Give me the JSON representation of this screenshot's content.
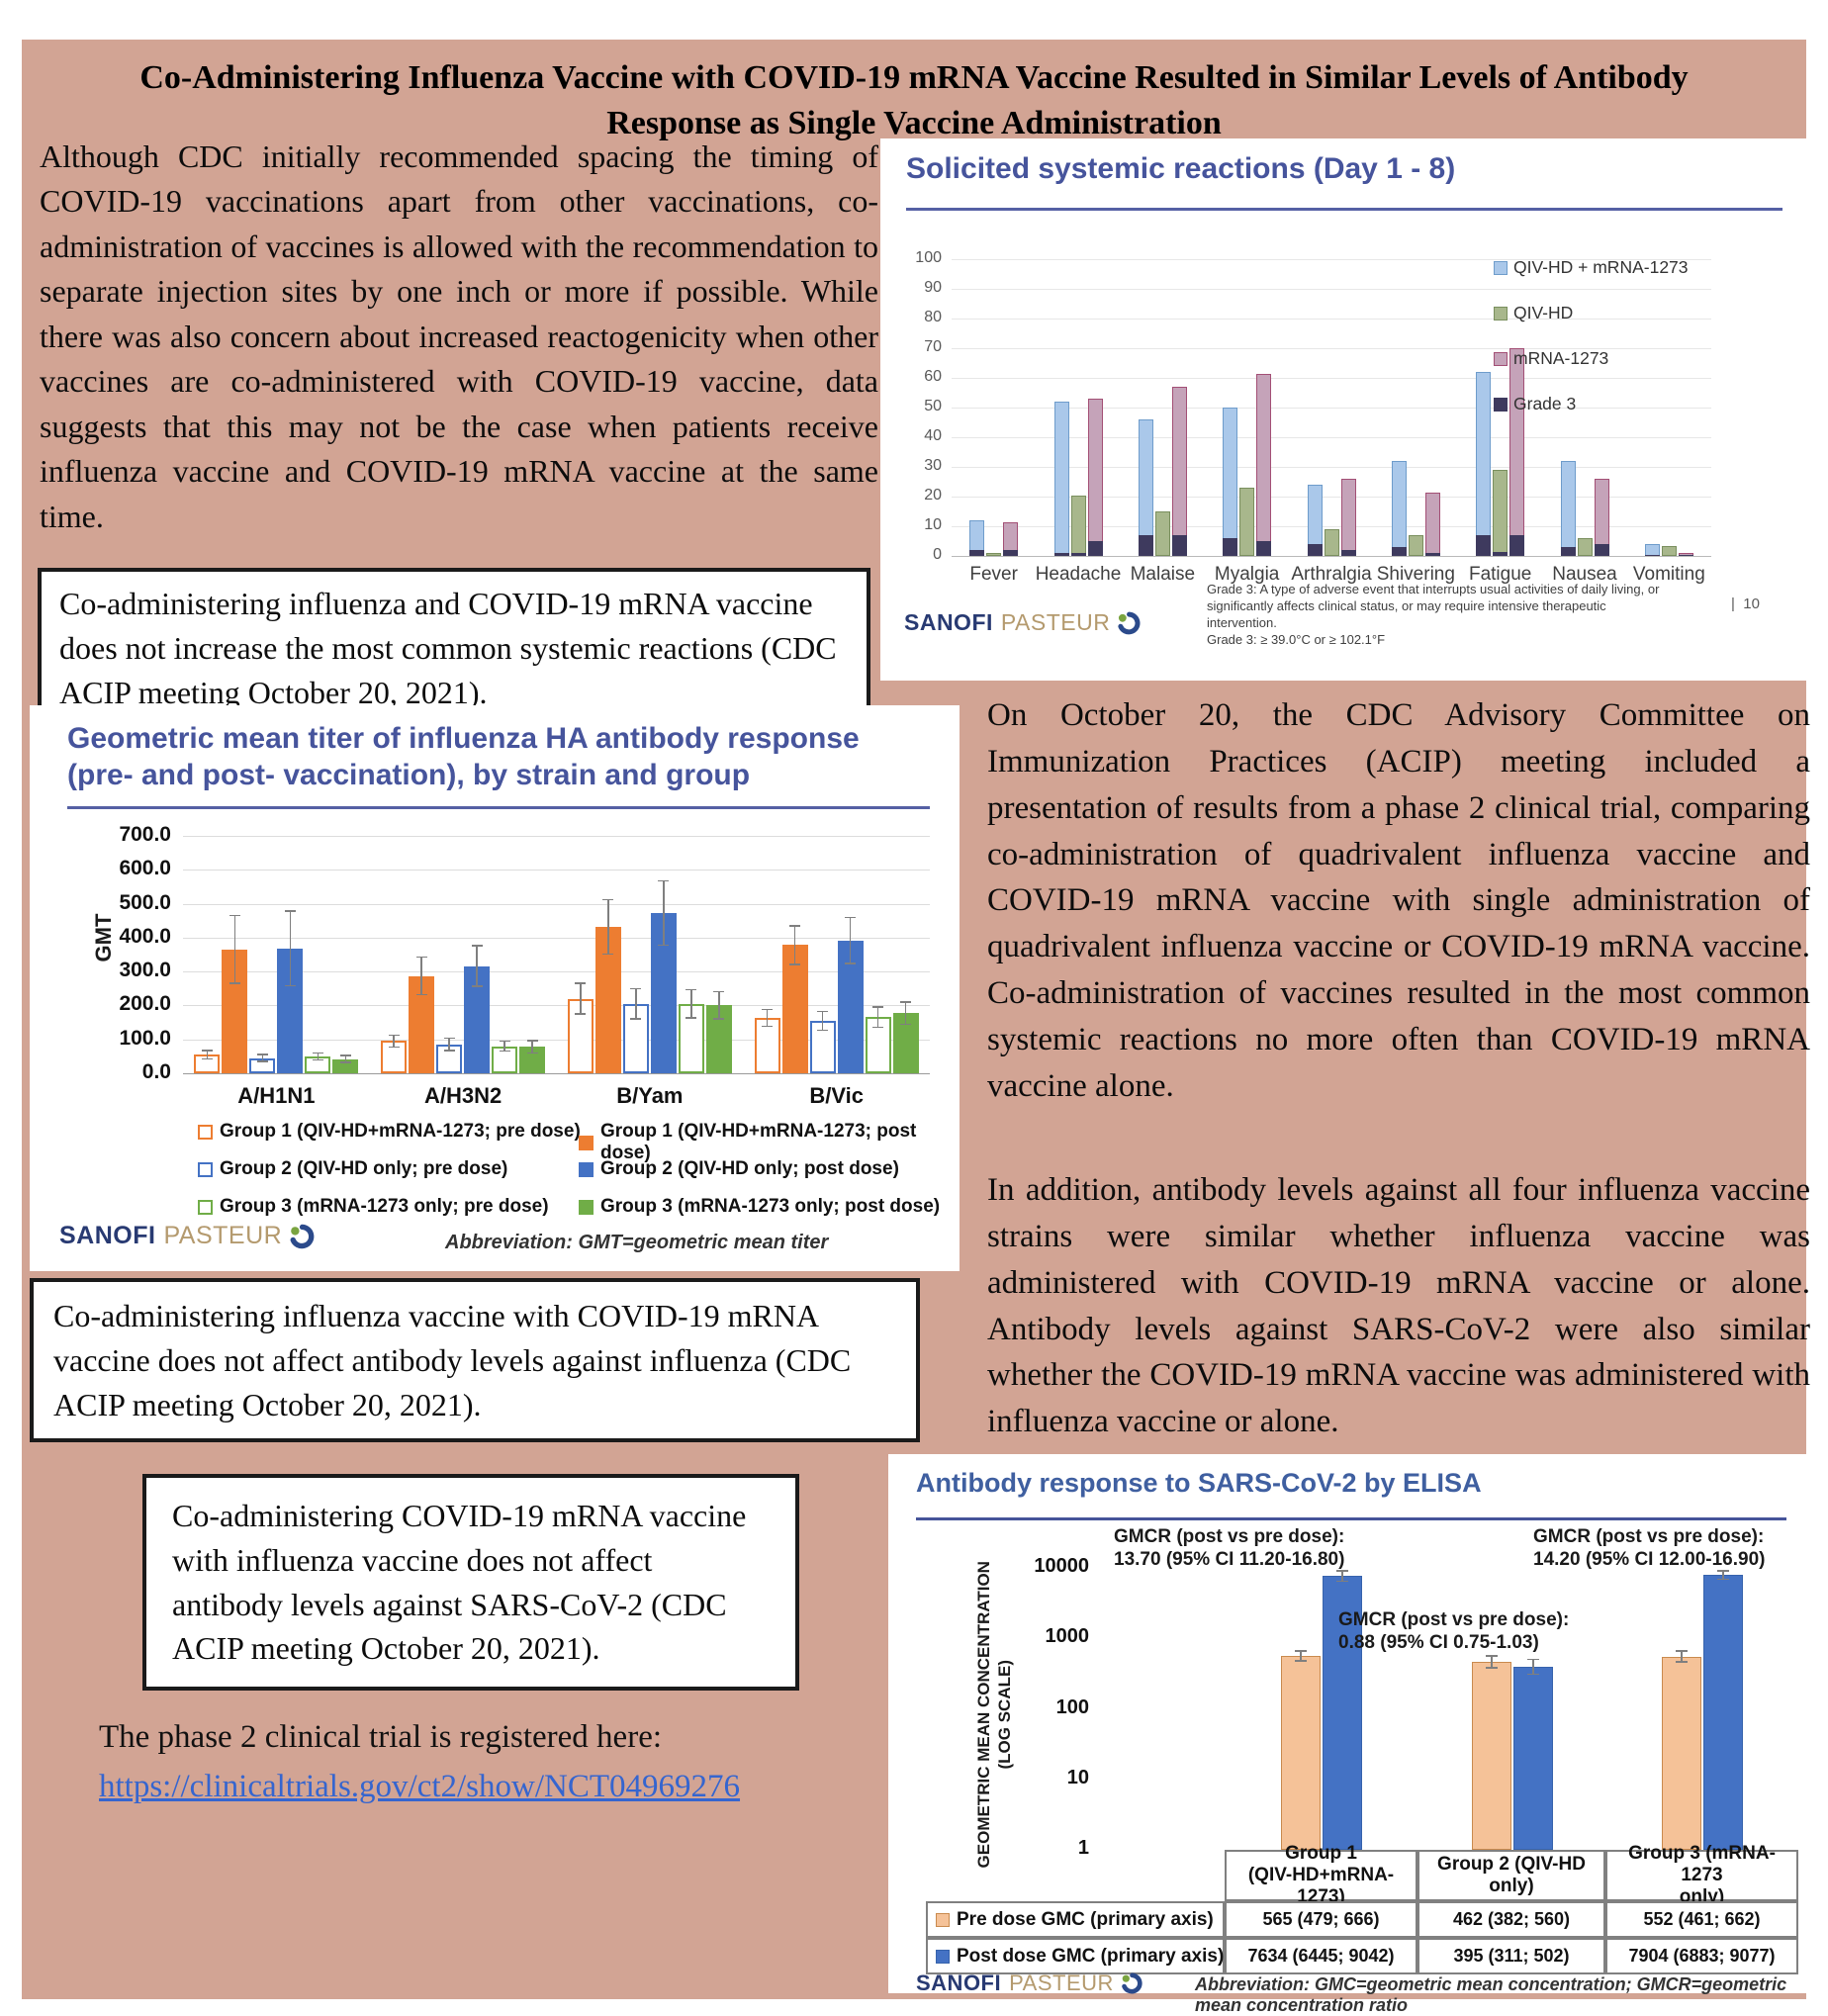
{
  "page": {
    "title": "Co-Administering Influenza Vaccine with COVID-19 mRNA Vaccine Resulted in Similar Levels of Antibody Response as Single Vaccine Administration"
  },
  "branding": {
    "sanofi": "SANOFI",
    "pasteur": "PASTEUR"
  },
  "left_column": {
    "intro": "Although CDC initially recommended spacing the timing of COVID-19 vaccinations apart from other vaccinations, co-administration of vaccines is allowed with the recommendation to separate injection sites by one inch or more if possible. While there was also concern about increased reactogenicity when other vaccines are co-administered with COVID-19 vaccine, data suggests that this may not be the case when patients receive influenza vaccine and COVID-19 mRNA vaccine at the same time.",
    "callout1": "Co-administering influenza and COVID-19 mRNA vaccine does not increase the most common systemic reactions (CDC ACIP meeting October 20, 2021).",
    "callout2": "Co-administering influenza vaccine with COVID-19 mRNA vaccine does not affect antibody levels against influenza (CDC ACIP meeting October 20, 2021).",
    "callout3": "Co-administering COVID-19 mRNA vaccine with influenza vaccine does not affect antibody levels against SARS-CoV-2 (CDC ACIP meeting October 20, 2021).",
    "registered_text": "The phase 2 clinical trial is registered here:",
    "registered_link": "https://clinicaltrials.gov/ct2/show/NCT04969276"
  },
  "right_column": {
    "para1": "On October 20, the CDC Advisory Committee on Immunization Practices (ACIP) meeting included a presentation of results from a phase 2 clinical trial, comparing co-administration of quadrivalent influenza vaccine and COVID-19 mRNA vaccine with single administration of quadrivalent influenza vaccine or COVID-19 mRNA vaccine. Co-administration of vaccines resulted in the most common systemic reactions no more often than COVID-19 mRNA vaccine alone.",
    "para2": "In addition, antibody levels against all four influenza vaccine strains were similar whether influenza vaccine was administered with COVID-19 mRNA vaccine or alone. Antibody levels against SARS-CoV-2 were also similar whether the COVID-19 mRNA vaccine was administered with influenza vaccine or alone."
  },
  "chart_data": [
    {
      "type": "bar",
      "title": "Solicited systemic reactions (Day 1 - 8)",
      "ylim": [
        0,
        100
      ],
      "ytick_step": 10,
      "grid": true,
      "legend_position": "top-right",
      "categories": [
        "Fever",
        "Headache",
        "Malaise",
        "Myalgia",
        "Arthralgia",
        "Shivering",
        "Fatigue",
        "Nausea",
        "Vomiting"
      ],
      "series": [
        {
          "name": "QIV-HD + mRNA-1273",
          "color": "#aac8ea",
          "border": "#6e9ccb",
          "values": [
            12,
            52,
            46,
            50,
            24,
            32,
            62,
            32,
            4
          ],
          "grade3": [
            2,
            1,
            7,
            6,
            4,
            3,
            7,
            3,
            0.5
          ]
        },
        {
          "name": "QIV-HD",
          "color": "#a8b78c",
          "border": "#7a8f5e",
          "values": [
            1,
            20.5,
            15,
            23,
            9,
            7,
            29,
            6,
            3.5
          ],
          "grade3": [
            0,
            1,
            0,
            0,
            0,
            0,
            1.5,
            0,
            0
          ]
        },
        {
          "name": "mRNA-1273",
          "color": "#c5a3b9",
          "border": "#a34f75",
          "values": [
            11.5,
            53,
            57,
            61.5,
            26,
            21.5,
            70,
            26,
            1
          ],
          "grade3": [
            2,
            5,
            7,
            5,
            2,
            1,
            7,
            4,
            0.5
          ]
        }
      ],
      "grade3_legend": {
        "name": "Grade 3",
        "color": "#3e3a5e"
      },
      "footnote1": "Grade 3: A type of adverse event that interrupts usual activities of daily living, or significantly affects clinical status, or may require intensive therapeutic intervention.",
      "footnote2": "Grade 3: ≥ 39.0°C or ≥ 102.1°F",
      "page_number": "10"
    },
    {
      "type": "bar",
      "title_line1": "Geometric mean titer of influenza HA antibody response",
      "title_line2": "(pre- and post- vaccination), by strain and group",
      "ylabel": "GMT",
      "ylim": [
        0,
        700
      ],
      "ytick_step": 100,
      "grid": true,
      "legend_position": "bottom",
      "categories": [
        "A/H1N1",
        "A/H3N2",
        "B/Yam",
        "B/Vic"
      ],
      "series": [
        {
          "name": "Group 1 (QIV-HD+mRNA-1273; pre dose)",
          "color": "#ed7d31",
          "fill": "#ffffff",
          "values": [
            55,
            95,
            220,
            163
          ],
          "err": [
            12,
            18,
            45,
            25
          ]
        },
        {
          "name": "Group 1 (QIV-HD+mRNA-1273; post dose)",
          "color": "#ed7d31",
          "fill": "#ed7d31",
          "values": [
            365,
            287,
            432,
            378
          ],
          "err": [
            100,
            55,
            80,
            57
          ]
        },
        {
          "name": "Group 2 (QIV-HD only; pre dose)",
          "color": "#4472c4",
          "fill": "#ffffff",
          "values": [
            45,
            85,
            205,
            155
          ],
          "err": [
            10,
            18,
            45,
            28
          ]
        },
        {
          "name": "Group 2 (QIV-HD only; post dose)",
          "color": "#4472c4",
          "fill": "#4472c4",
          "values": [
            368,
            316,
            472,
            392
          ],
          "err": [
            110,
            60,
            95,
            68
          ]
        },
        {
          "name": "Group 3 (mRNA-1273 only; pre dose)",
          "color": "#70ad47",
          "fill": "#ffffff",
          "values": [
            50,
            80,
            205,
            165
          ],
          "err": [
            10,
            15,
            42,
            30
          ]
        },
        {
          "name": "Group 3 (mRNA-1273 only; post dose)",
          "color": "#70ad47",
          "fill": "#70ad47",
          "values": [
            42,
            78,
            200,
            177
          ],
          "err": [
            10,
            18,
            40,
            33
          ]
        }
      ],
      "abbreviation": "Abbreviation: GMT=geometric mean titer"
    },
    {
      "type": "bar",
      "yscale": "log",
      "title": "Antibody response to SARS-CoV-2 by ELISA",
      "ylabel": "GEOMETRIC MEAN CONCENTRATION\n(LOG SCALE)",
      "yticks": [
        10000,
        1000,
        100,
        10,
        1
      ],
      "ylim": [
        1,
        10000
      ],
      "grid": false,
      "groups": [
        "Group 1\n(QIV-HD+mRNA-1273)",
        "Group 2 (QIV-HD only)",
        "Group 3 (mRNA-1273\nonly)"
      ],
      "series": [
        {
          "name": "Pre dose GMC (primary axis)",
          "color": "#f5c298",
          "border": "#c98a4e",
          "values": [
            565,
            462,
            552
          ],
          "err_lo": [
            479,
            382,
            461
          ],
          "err_hi": [
            666,
            560,
            662
          ],
          "cells": [
            "565 (479; 666)",
            "462 (382; 560)",
            "552 (461; 662)"
          ]
        },
        {
          "name": "Post dose GMC (primary axis)",
          "color": "#4472c4",
          "border": "#3763ac",
          "values": [
            7634,
            395,
            7904
          ],
          "err_lo": [
            6445,
            311,
            6883
          ],
          "err_hi": [
            9042,
            502,
            9077
          ],
          "cells": [
            "7634 (6445; 9042)",
            "395 (311; 502)",
            "7904 (6883; 9077)"
          ]
        }
      ],
      "annotations": [
        {
          "line1": "GMCR (post vs pre dose):",
          "line2": "13.70 (95% CI 11.20-16.80)"
        },
        {
          "line1": "GMCR (post vs pre dose):",
          "line2": "0.88 (95% CI 0.75-1.03)"
        },
        {
          "line1": "GMCR (post vs pre dose):",
          "line2": "14.20 (95% CI 12.00-16.90)"
        }
      ],
      "abbreviation": "Abbreviation: GMC=geometric mean concentration; GMCR=geometric mean concentration ratio"
    }
  ]
}
